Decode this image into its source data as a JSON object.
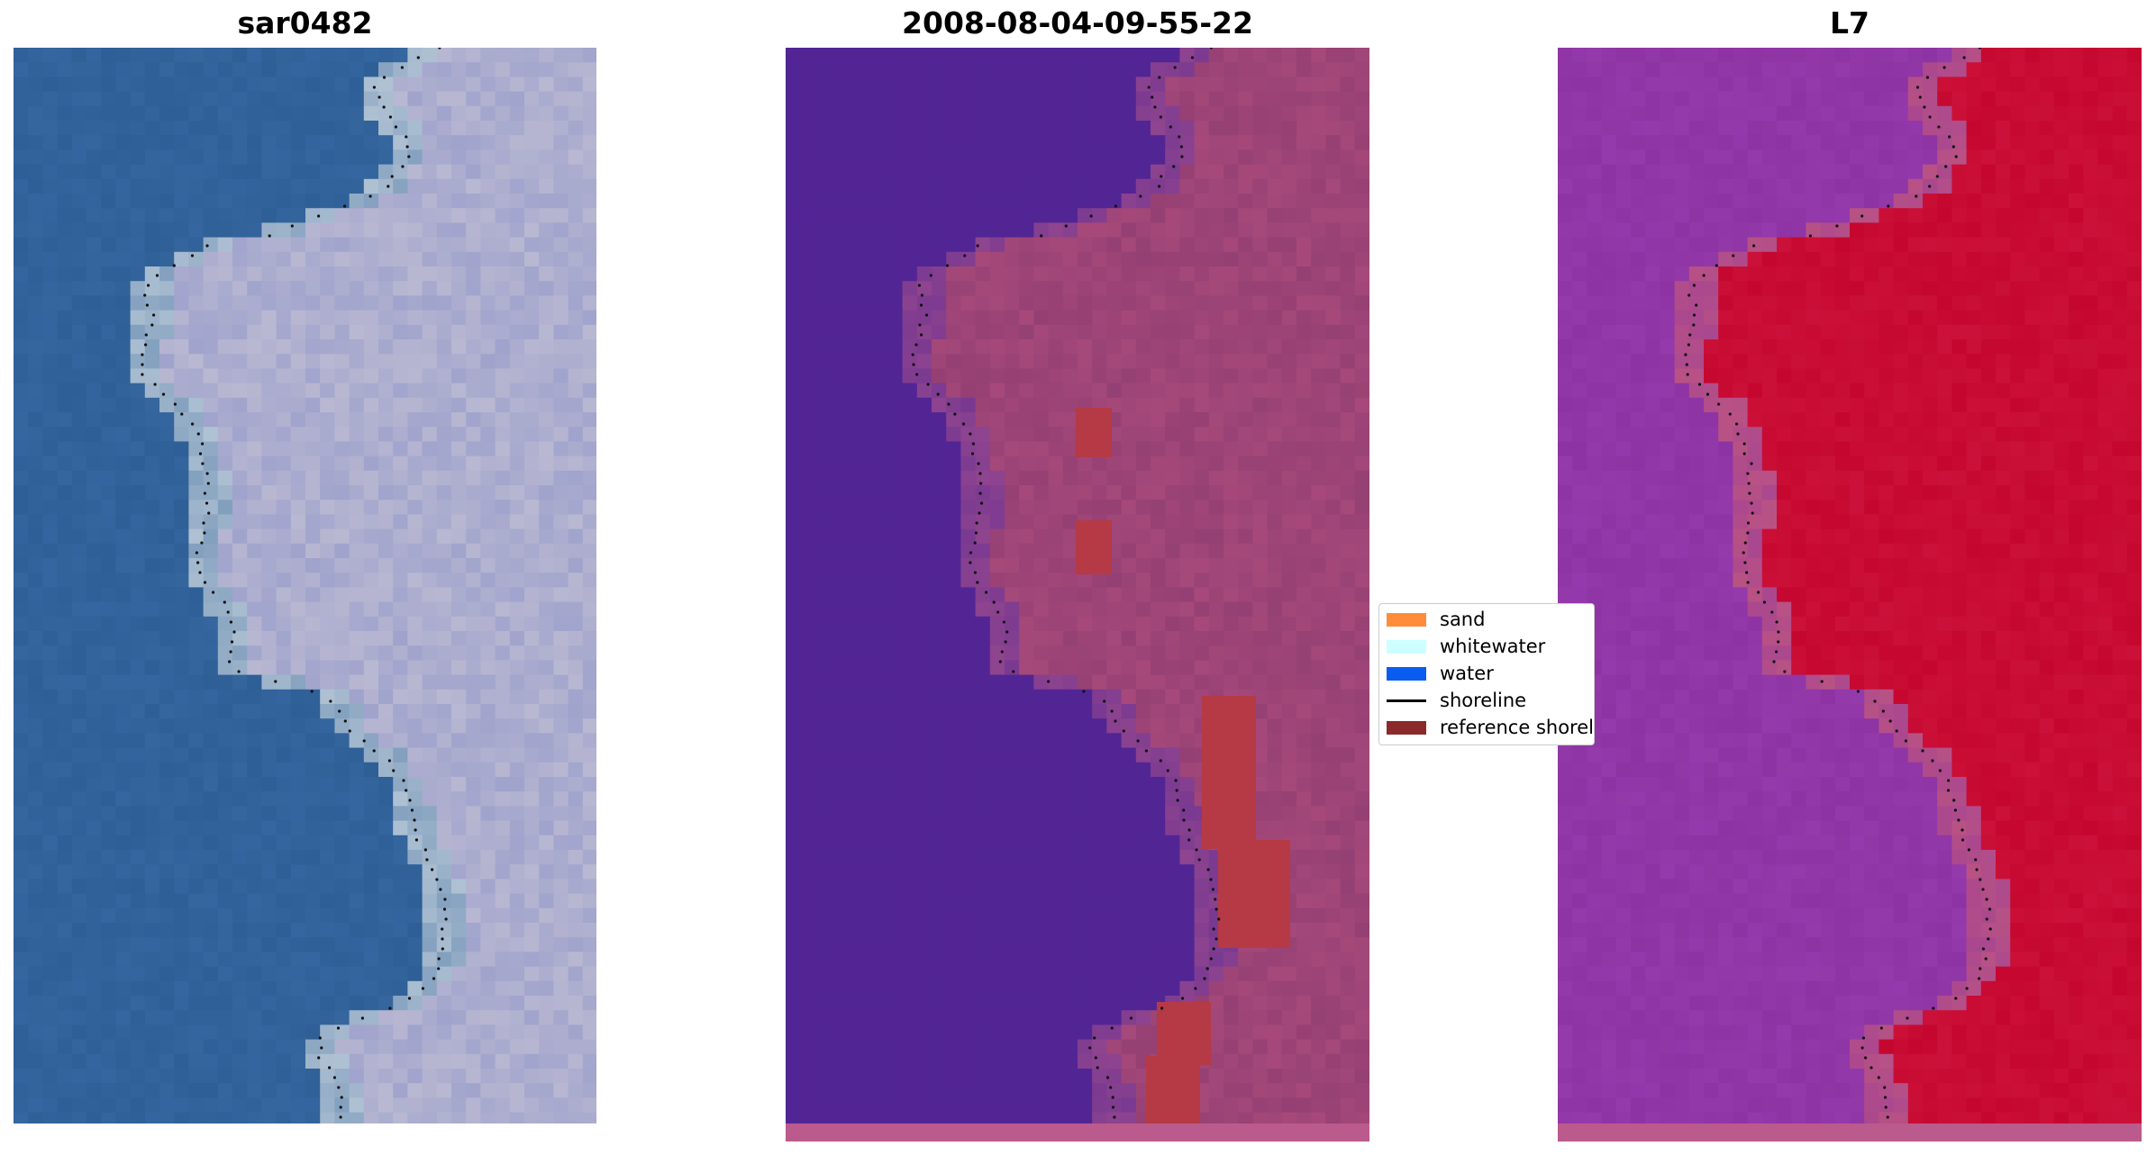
{
  "panels": [
    {
      "id": "rgb",
      "title": "sar0482"
    },
    {
      "id": "classified",
      "title": "2008-08-04-09-55-22"
    },
    {
      "id": "index",
      "title": "L7"
    }
  ],
  "legend": {
    "items": [
      {
        "label": "sand",
        "color": "#ff8c3a",
        "kind": "patch"
      },
      {
        "label": "whitewater",
        "color": "#ccffff",
        "kind": "patch"
      },
      {
        "label": "water",
        "color": "#0a5cf0",
        "kind": "patch"
      },
      {
        "label": "shoreline",
        "color": "#000000",
        "kind": "line"
      },
      {
        "label": "reference shoreline",
        "color": "#8b2a2a",
        "kind": "patch"
      }
    ]
  },
  "colors": {
    "rgb_water": "#2e5f96",
    "rgb_land": "#b9b8d2",
    "classified_water": "#522595",
    "classified_land": "#a6497a",
    "classified_buffer": "#b53a45",
    "index_water": "#8e33a3",
    "index_land": "#c5072f",
    "dot": "#111111"
  }
}
